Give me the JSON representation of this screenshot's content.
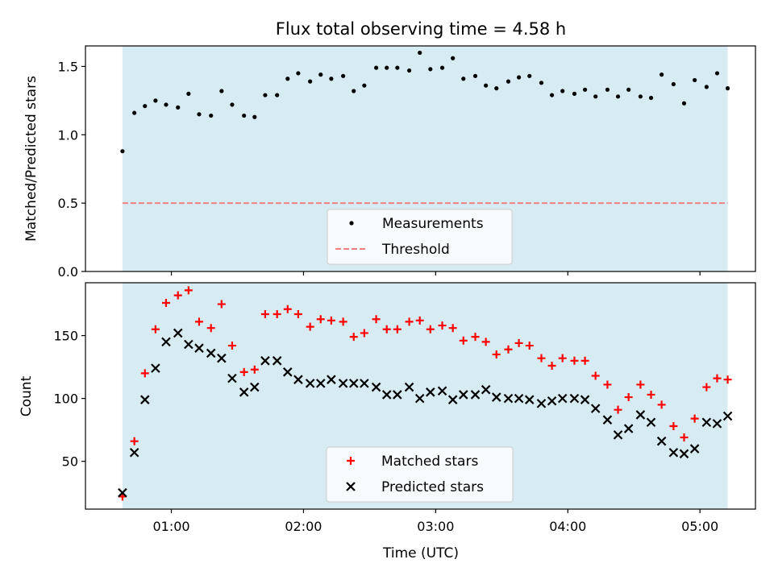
{
  "title": "Flux total observing time = 4.58 h",
  "colors": {
    "shade": "#add8e6",
    "threshold": "#f08080",
    "matched": "#ff0000",
    "predicted": "#000000",
    "measurement": "#000000"
  },
  "chart_data": [
    {
      "type": "scatter",
      "ylabel": "Matched/Predicted stars",
      "ylim": [
        0,
        1.65
      ],
      "yticks": [
        0.0,
        0.5,
        1.0,
        1.5
      ],
      "ytick_labels": [
        "0.0",
        "0.5",
        "1.0",
        "1.5"
      ],
      "xlim": [
        0.35,
        5.42
      ],
      "shaded_span": [
        0.63,
        5.21
      ],
      "threshold": 0.5,
      "legend": {
        "position": "lower center",
        "entries": [
          "Measurements",
          "Threshold"
        ]
      },
      "series": [
        {
          "name": "Measurements",
          "x": [
            0.63,
            0.72,
            0.8,
            0.88,
            0.96,
            1.05,
            1.13,
            1.21,
            1.3,
            1.38,
            1.46,
            1.55,
            1.63,
            1.71,
            1.8,
            1.88,
            1.96,
            2.05,
            2.13,
            2.21,
            2.3,
            2.38,
            2.46,
            2.55,
            2.63,
            2.71,
            2.8,
            2.88,
            2.96,
            3.05,
            3.13,
            3.21,
            3.3,
            3.38,
            3.46,
            3.55,
            3.63,
            3.71,
            3.8,
            3.88,
            3.96,
            4.05,
            4.13,
            4.21,
            4.3,
            4.38,
            4.46,
            4.55,
            4.63,
            4.71,
            4.8,
            4.88,
            4.96,
            5.05,
            5.13,
            5.21
          ],
          "y": [
            0.88,
            1.16,
            1.21,
            1.25,
            1.22,
            1.2,
            1.3,
            1.15,
            1.14,
            1.32,
            1.22,
            1.14,
            1.13,
            1.29,
            1.29,
            1.41,
            1.45,
            1.39,
            1.44,
            1.41,
            1.43,
            1.32,
            1.36,
            1.49,
            1.49,
            1.49,
            1.47,
            1.6,
            1.48,
            1.49,
            1.56,
            1.41,
            1.43,
            1.36,
            1.34,
            1.39,
            1.42,
            1.43,
            1.38,
            1.29,
            1.32,
            1.3,
            1.33,
            1.28,
            1.33,
            1.28,
            1.33,
            1.28,
            1.27,
            1.44,
            1.37,
            1.23,
            1.4,
            1.35,
            1.45,
            1.34
          ]
        }
      ]
    },
    {
      "type": "scatter",
      "ylabel": "Count",
      "xlabel": "Time (UTC)",
      "ylim": [
        12,
        192
      ],
      "yticks": [
        50,
        100,
        150
      ],
      "ytick_labels": [
        "50",
        "100",
        "150"
      ],
      "xlim": [
        0.35,
        5.42
      ],
      "xticks": [
        1,
        2,
        3,
        4,
        5
      ],
      "xtick_labels": [
        "01:00",
        "02:00",
        "03:00",
        "04:00",
        "05:00"
      ],
      "shaded_span": [
        0.63,
        5.21
      ],
      "legend": {
        "position": "lower center",
        "entries": [
          "Matched stars",
          "Predicted stars"
        ]
      },
      "series": [
        {
          "name": "Matched stars",
          "x": [
            0.63,
            0.72,
            0.8,
            0.88,
            0.96,
            1.05,
            1.13,
            1.21,
            1.3,
            1.38,
            1.46,
            1.55,
            1.63,
            1.71,
            1.8,
            1.88,
            1.96,
            2.05,
            2.13,
            2.21,
            2.3,
            2.38,
            2.46,
            2.55,
            2.63,
            2.71,
            2.8,
            2.88,
            2.96,
            3.05,
            3.13,
            3.21,
            3.3,
            3.38,
            3.46,
            3.55,
            3.63,
            3.71,
            3.8,
            3.88,
            3.96,
            4.05,
            4.13,
            4.21,
            4.3,
            4.38,
            4.46,
            4.55,
            4.63,
            4.71,
            4.8,
            4.88,
            4.96,
            5.05,
            5.13,
            5.21
          ],
          "y": [
            22,
            66,
            120,
            155,
            176,
            182,
            186,
            161,
            156,
            175,
            142,
            121,
            123,
            167,
            167,
            171,
            167,
            157,
            163,
            162,
            161,
            149,
            152,
            163,
            155,
            155,
            161,
            162,
            155,
            158,
            156,
            146,
            149,
            145,
            135,
            139,
            144,
            142,
            132,
            126,
            132,
            130,
            130,
            118,
            111,
            91,
            101,
            111,
            103,
            95,
            78,
            69,
            84,
            109,
            116,
            115
          ]
        },
        {
          "name": "Predicted stars",
          "x": [
            0.63,
            0.72,
            0.8,
            0.88,
            0.96,
            1.05,
            1.13,
            1.21,
            1.3,
            1.38,
            1.46,
            1.55,
            1.63,
            1.71,
            1.8,
            1.88,
            1.96,
            2.05,
            2.13,
            2.21,
            2.3,
            2.38,
            2.46,
            2.55,
            2.63,
            2.71,
            2.8,
            2.88,
            2.96,
            3.05,
            3.13,
            3.21,
            3.3,
            3.38,
            3.46,
            3.55,
            3.63,
            3.71,
            3.8,
            3.88,
            3.96,
            4.05,
            4.13,
            4.21,
            4.3,
            4.38,
            4.46,
            4.55,
            4.63,
            4.71,
            4.8,
            4.88,
            4.96,
            5.05,
            5.13,
            5.21
          ],
          "y": [
            25,
            57,
            99,
            124,
            145,
            152,
            143,
            140,
            136,
            132,
            116,
            105,
            109,
            130,
            130,
            121,
            115,
            112,
            112,
            115,
            112,
            112,
            112,
            109,
            103,
            103,
            109,
            100,
            105,
            106,
            99,
            103,
            103,
            107,
            101,
            100,
            100,
            99,
            96,
            98,
            100,
            100,
            99,
            92,
            83,
            71,
            76,
            87,
            81,
            66,
            57,
            56,
            60,
            81,
            80,
            86
          ]
        }
      ]
    }
  ]
}
